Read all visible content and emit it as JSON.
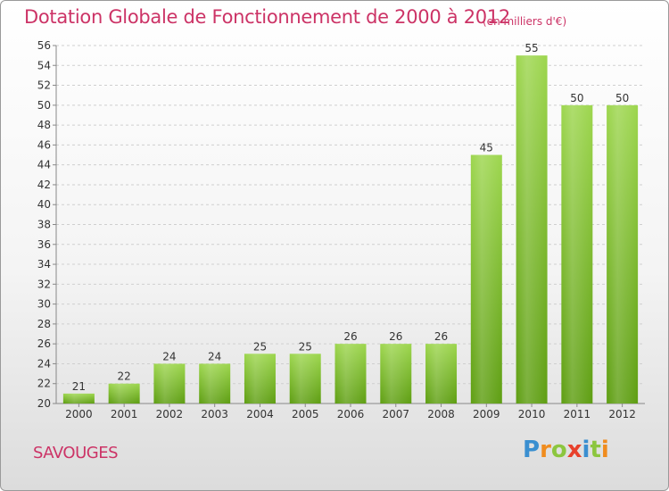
{
  "chart_data": {
    "type": "bar",
    "title": "Dotation Globale de Fonctionnement de 2000 à 2012",
    "subtitle": "(en milliers d'€)",
    "categories": [
      "2000",
      "2001",
      "2002",
      "2003",
      "2004",
      "2005",
      "2006",
      "2007",
      "2008",
      "2009",
      "2010",
      "2011",
      "2012"
    ],
    "values": [
      21,
      22,
      24,
      24,
      25,
      25,
      26,
      26,
      26,
      45,
      55,
      50,
      50
    ],
    "ylim": [
      20,
      56
    ],
    "yticks": [
      20,
      22,
      24,
      26,
      28,
      30,
      32,
      34,
      36,
      38,
      40,
      42,
      44,
      46,
      48,
      50,
      52,
      54,
      56
    ],
    "grid": true,
    "bar_color": "#77b82a"
  },
  "footer": {
    "commune": "SAVOUGES",
    "logo_letters": [
      {
        "ch": "P",
        "color": "#3a8fd0"
      },
      {
        "ch": "r",
        "color": "#f08c1e"
      },
      {
        "ch": "o",
        "color": "#8cc63f"
      },
      {
        "ch": "x",
        "color": "#e8412c"
      },
      {
        "ch": "i",
        "color": "#3a8fd0"
      },
      {
        "ch": "t",
        "color": "#8cc63f"
      },
      {
        "ch": "i",
        "color": "#f08c1e"
      }
    ]
  }
}
